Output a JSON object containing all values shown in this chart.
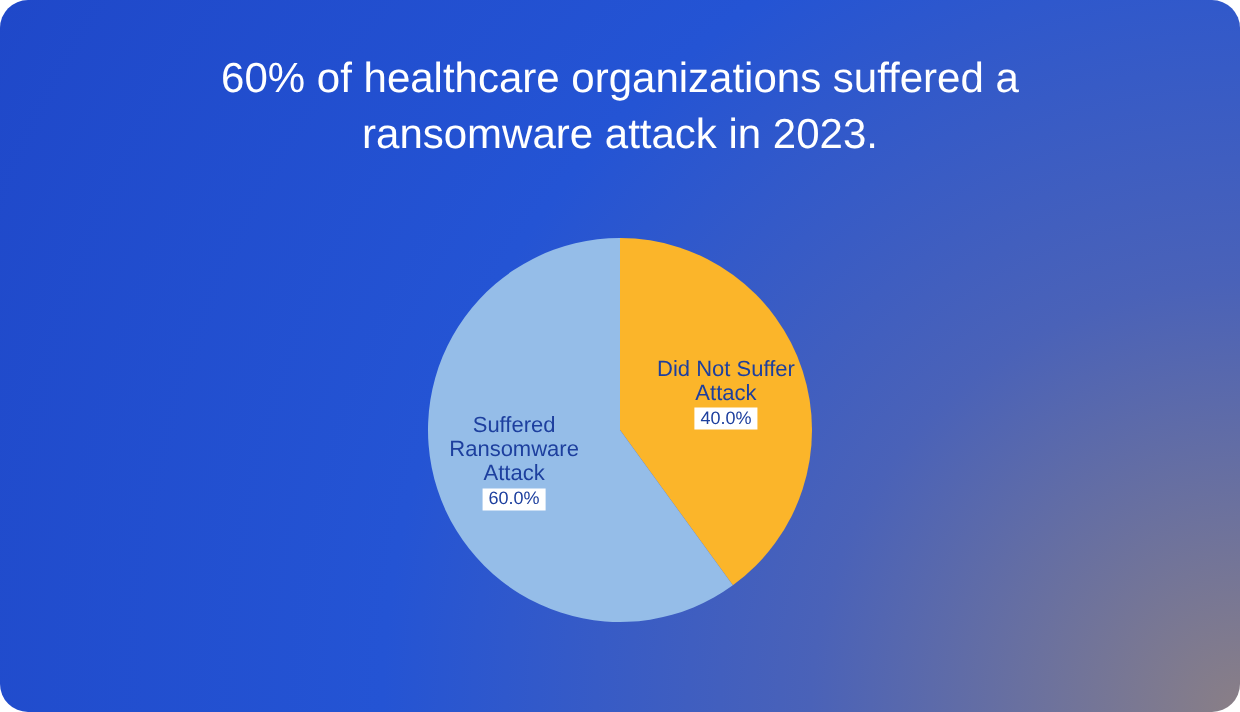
{
  "chart_data": {
    "type": "pie",
    "title": "60% of healthcare organizations suffered a ransomware attack in 2023.",
    "categories": [
      "Did Not Suffer Attack",
      "Suffered Ransomware Attack"
    ],
    "values": [
      40,
      60
    ],
    "colors": [
      "#fbb52a",
      "#95bde8"
    ],
    "value_labels": [
      "40.0%",
      "60.0%"
    ],
    "legend": false
  }
}
